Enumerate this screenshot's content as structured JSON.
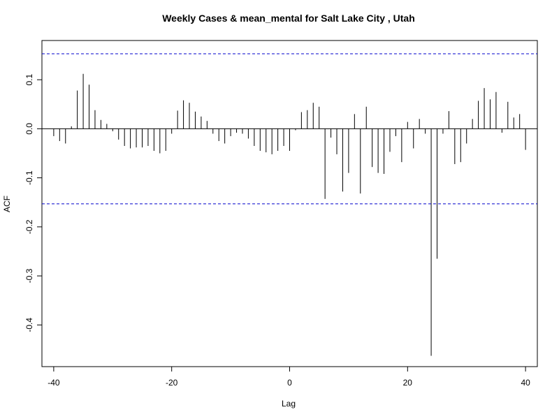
{
  "chart_data": {
    "type": "bar",
    "title": "Weekly Cases & mean_mental for Salt Lake City , Utah",
    "xlabel": "Lag",
    "ylabel": "ACF",
    "xlim": [
      -42,
      42
    ],
    "ylim": [
      -0.485,
      0.18
    ],
    "x_ticks": [
      -40,
      -20,
      0,
      20,
      40
    ],
    "x_tick_labels": [
      "-40",
      "-20",
      "0",
      "20",
      "40"
    ],
    "y_ticks": [
      -0.4,
      -0.3,
      -0.2,
      -0.1,
      0.0,
      0.1
    ],
    "y_tick_labels": [
      "-0.4",
      "-0.3",
      "-0.2",
      "-0.1",
      "0.0",
      "0.1"
    ],
    "confidence_limit": 0.153,
    "confidence_line_color": "#0000cc",
    "bar_color": "#000000",
    "grid": false,
    "legend": "none",
    "lags": [
      -40,
      -39,
      -38,
      -37,
      -36,
      -35,
      -34,
      -33,
      -32,
      -31,
      -30,
      -29,
      -28,
      -27,
      -26,
      -25,
      -24,
      -23,
      -22,
      -21,
      -20,
      -19,
      -18,
      -17,
      -16,
      -15,
      -14,
      -13,
      -12,
      -11,
      -10,
      -9,
      -8,
      -7,
      -6,
      -5,
      -4,
      -3,
      -2,
      -1,
      0,
      1,
      2,
      3,
      4,
      5,
      6,
      7,
      8,
      9,
      10,
      11,
      12,
      13,
      14,
      15,
      16,
      17,
      18,
      19,
      20,
      21,
      22,
      23,
      24,
      25,
      26,
      27,
      28,
      29,
      30,
      31,
      32,
      33,
      34,
      35,
      36,
      37,
      38,
      39,
      40
    ],
    "acf": [
      -0.015,
      -0.025,
      -0.03,
      0.005,
      0.078,
      0.112,
      0.09,
      0.038,
      0.018,
      0.01,
      -0.005,
      -0.022,
      -0.035,
      -0.04,
      -0.038,
      -0.038,
      -0.035,
      -0.045,
      -0.05,
      -0.045,
      -0.01,
      0.037,
      0.058,
      0.053,
      0.035,
      0.025,
      0.016,
      -0.01,
      -0.025,
      -0.03,
      -0.015,
      -0.008,
      -0.01,
      -0.02,
      -0.035,
      -0.045,
      -0.048,
      -0.052,
      -0.045,
      -0.035,
      -0.045,
      -0.003,
      0.034,
      0.038,
      0.053,
      0.045,
      -0.143,
      -0.018,
      -0.052,
      -0.128,
      -0.09,
      0.03,
      -0.132,
      0.045,
      -0.078,
      -0.09,
      -0.092,
      -0.047,
      -0.015,
      -0.068,
      0.014,
      -0.04,
      0.02,
      -0.01,
      -0.463,
      -0.265,
      -0.01,
      0.036,
      -0.072,
      -0.068,
      -0.03,
      0.02,
      0.057,
      0.083,
      0.06,
      0.075,
      -0.008,
      0.055,
      0.023,
      0.03,
      -0.043
    ]
  }
}
